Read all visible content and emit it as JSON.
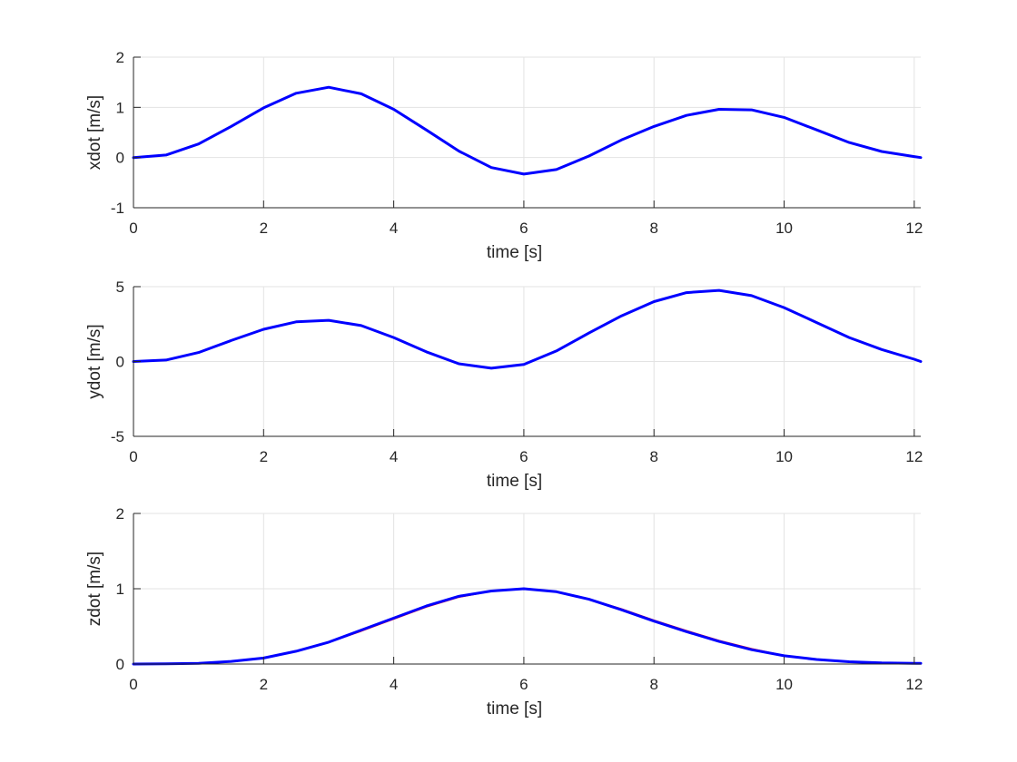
{
  "chart_data": [
    {
      "type": "line",
      "title": "",
      "xlabel": "time [s]",
      "ylabel": "xdot [m/s]",
      "xlim": [
        0,
        12.1
      ],
      "ylim": [
        -1,
        2
      ],
      "xticks": [
        "0",
        "2",
        "4",
        "6",
        "8",
        "10",
        "12"
      ],
      "yticks": [
        "-1",
        "0",
        "1",
        "2"
      ],
      "grid": true,
      "series": [
        {
          "color": "#ff0000",
          "x": [
            0,
            0.5,
            1,
            1.5,
            2,
            2.5,
            3,
            3.5,
            4,
            4.5,
            5,
            5.5,
            6,
            6.5,
            7,
            7.5,
            8,
            8.5,
            9,
            9.5,
            10,
            10.5,
            11,
            11.5,
            12,
            12.1
          ],
          "y": [
            0,
            0.05,
            0.27,
            0.62,
            0.99,
            1.28,
            1.4,
            1.27,
            0.96,
            0.55,
            0.13,
            -0.2,
            -0.33,
            -0.24,
            0.03,
            0.35,
            0.62,
            0.84,
            0.96,
            0.95,
            0.8,
            0.55,
            0.3,
            0.12,
            0.02,
            0
          ]
        },
        {
          "color": "#0000ff",
          "x": [
            0,
            0.5,
            1,
            1.5,
            2,
            2.5,
            3,
            3.5,
            4,
            4.5,
            5,
            5.5,
            6,
            6.5,
            7,
            7.5,
            8,
            8.5,
            9,
            9.5,
            10,
            10.5,
            11,
            11.5,
            12,
            12.1
          ],
          "y": [
            0,
            0.05,
            0.27,
            0.62,
            0.99,
            1.28,
            1.4,
            1.27,
            0.96,
            0.55,
            0.13,
            -0.2,
            -0.33,
            -0.24,
            0.03,
            0.35,
            0.62,
            0.84,
            0.96,
            0.95,
            0.8,
            0.55,
            0.3,
            0.12,
            0.02,
            0
          ]
        }
      ]
    },
    {
      "type": "line",
      "title": "",
      "xlabel": "time [s]",
      "ylabel": "ydot [m/s]",
      "xlim": [
        0,
        12.1
      ],
      "ylim": [
        -5,
        5
      ],
      "xticks": [
        "0",
        "2",
        "4",
        "6",
        "8",
        "10",
        "12"
      ],
      "yticks": [
        "-5",
        "0",
        "5"
      ],
      "grid": true,
      "series": [
        {
          "color": "#ff0000",
          "x": [
            0,
            0.5,
            1,
            1.5,
            2,
            2.5,
            3,
            3.5,
            4,
            4.5,
            5,
            5.5,
            6,
            6.5,
            7,
            7.5,
            8,
            8.5,
            9,
            9.5,
            10,
            10.5,
            11,
            11.5,
            12,
            12.1
          ],
          "y": [
            0,
            0.1,
            0.6,
            1.4,
            2.15,
            2.65,
            2.75,
            2.4,
            1.6,
            0.65,
            -0.15,
            -0.45,
            -0.2,
            0.7,
            1.9,
            3.05,
            4.0,
            4.6,
            4.75,
            4.4,
            3.6,
            2.6,
            1.6,
            0.8,
            0.15,
            0
          ]
        },
        {
          "color": "#0000ff",
          "x": [
            0,
            0.5,
            1,
            1.5,
            2,
            2.5,
            3,
            3.5,
            4,
            4.5,
            5,
            5.5,
            6,
            6.5,
            7,
            7.5,
            8,
            8.5,
            9,
            9.5,
            10,
            10.5,
            11,
            11.5,
            12,
            12.1
          ],
          "y": [
            0,
            0.1,
            0.6,
            1.4,
            2.15,
            2.65,
            2.75,
            2.4,
            1.6,
            0.65,
            -0.15,
            -0.45,
            -0.2,
            0.7,
            1.9,
            3.05,
            4.0,
            4.6,
            4.75,
            4.4,
            3.6,
            2.6,
            1.6,
            0.8,
            0.15,
            0
          ]
        }
      ]
    },
    {
      "type": "line",
      "title": "",
      "xlabel": "time [s]",
      "ylabel": "zdot [m/s]",
      "xlim": [
        0,
        12.1
      ],
      "ylim": [
        0,
        2
      ],
      "xticks": [
        "0",
        "2",
        "4",
        "6",
        "8",
        "10",
        "12"
      ],
      "yticks": [
        "0",
        "1",
        "2"
      ],
      "grid": true,
      "series": [
        {
          "color": "#ff0000",
          "x": [
            0,
            0.5,
            1,
            1.5,
            2,
            2.5,
            3,
            3.5,
            4,
            4.5,
            5,
            5.5,
            6,
            6.5,
            7,
            7.5,
            8,
            8.5,
            9,
            9.5,
            10,
            10.5,
            11,
            11.5,
            12,
            12.1
          ],
          "y": [
            0,
            0.003,
            0.01,
            0.035,
            0.08,
            0.17,
            0.29,
            0.44,
            0.6,
            0.76,
            0.89,
            0.97,
            1.0,
            0.96,
            0.86,
            0.73,
            0.58,
            0.44,
            0.31,
            0.2,
            0.11,
            0.06,
            0.03,
            0.015,
            0.01,
            0.01
          ]
        },
        {
          "color": "#0000ff",
          "x": [
            0,
            0.5,
            1,
            1.5,
            2,
            2.5,
            3,
            3.5,
            4,
            4.5,
            5,
            5.5,
            6,
            6.5,
            7,
            7.5,
            8,
            8.5,
            9,
            9.5,
            10,
            10.5,
            11,
            11.5,
            12,
            12.1
          ],
          "y": [
            0,
            0.003,
            0.01,
            0.035,
            0.08,
            0.17,
            0.29,
            0.45,
            0.61,
            0.77,
            0.9,
            0.97,
            1.0,
            0.96,
            0.86,
            0.72,
            0.57,
            0.43,
            0.3,
            0.19,
            0.11,
            0.06,
            0.03,
            0.015,
            0.01,
            0.01
          ]
        }
      ]
    }
  ]
}
